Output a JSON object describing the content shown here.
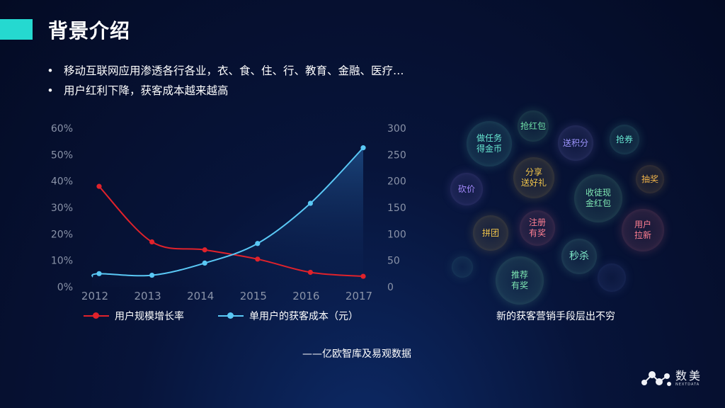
{
  "slide": {
    "title": "背景介绍",
    "bullets": [
      "移动互联网应用渗透各行各业，衣、食、住、行、教育、金融、医疗…",
      "用户红利下降，获客成本越来越高"
    ],
    "source": "——亿欧智库及易观数据",
    "bubble_caption": "新的获客营销手段层出不穷",
    "logo": {
      "text": "数美",
      "subtext": "NEXTDATA"
    },
    "colors": {
      "accent": "#25d9d0",
      "series_red": "#e0222b",
      "series_blue": "#5ac8f5"
    }
  },
  "chart_data": {
    "type": "line",
    "x": [
      "2012",
      "2013",
      "2014",
      "2015",
      "2016",
      "2017"
    ],
    "y_left": {
      "ticks": [
        "0%",
        "10%",
        "20%",
        "30%",
        "40%",
        "50%",
        "60%"
      ],
      "ylim": [
        0,
        60
      ]
    },
    "y_right": {
      "ticks": [
        "0",
        "50",
        "100",
        "150",
        "200",
        "250",
        "300"
      ],
      "ylim": [
        0,
        300
      ]
    },
    "series": [
      {
        "name": "用户规模增长率",
        "axis": "left",
        "color": "#e0222b",
        "values": [
          38,
          17,
          14,
          10.5,
          5.5,
          4
        ]
      },
      {
        "name": "单用户的获客成本（元）",
        "axis": "right",
        "color": "#5ac8f5",
        "values": [
          25,
          22,
          45,
          82,
          158,
          263
        ],
        "area": true
      }
    ],
    "grid": false
  },
  "bubbles": [
    {
      "id": "task",
      "text": "做任务\n得金币",
      "color": "#68e8d2"
    },
    {
      "id": "redpacket",
      "text": "抢红包",
      "color": "#6fe0a8"
    },
    {
      "id": "points",
      "text": "送积分",
      "color": "#9f96ff"
    },
    {
      "id": "coupon",
      "text": "抢券",
      "color": "#68e8d2"
    },
    {
      "id": "bargain",
      "text": "砍价",
      "color": "#a78bff"
    },
    {
      "id": "share",
      "text": "分享\n送好礼",
      "color": "#f3c64a"
    },
    {
      "id": "lottery",
      "text": "抽奖",
      "color": "#f0b34a"
    },
    {
      "id": "collect",
      "text": "收徒现\n金红包",
      "color": "#7fe8b4"
    },
    {
      "id": "group",
      "text": "拼团",
      "color": "#f3c64a"
    },
    {
      "id": "register",
      "text": "注册\n有奖",
      "color": "#ff7f92"
    },
    {
      "id": "acquire",
      "text": "用户\n拉新",
      "color": "#ff7f92"
    },
    {
      "id": "flash",
      "text": "秒杀",
      "color": "#7fe8c8"
    },
    {
      "id": "refer",
      "text": "推荐\n有奖",
      "color": "#7fe8b4"
    },
    {
      "id": "empty-a",
      "text": "",
      "color": "#4fa7a0"
    },
    {
      "id": "empty-b",
      "text": "",
      "color": "#5a72c8"
    }
  ]
}
